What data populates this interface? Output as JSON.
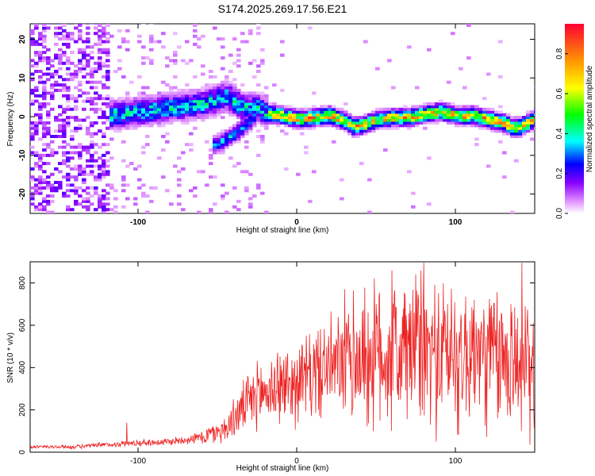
{
  "title": "S174.2025.269.17.56.E21",
  "chart_data": [
    {
      "type": "heatmap",
      "title": "S174.2025.269.17.56.E21",
      "xlabel": "Height of straight line (km)",
      "ylabel": "Frequency (Hz)",
      "xlim": [
        -168,
        150
      ],
      "ylim": [
        -25,
        24
      ],
      "xticks": [
        -100,
        0,
        100
      ],
      "yticks": [
        -20,
        -10,
        0,
        10,
        20
      ],
      "colorbar": {
        "label": "Normalized spectral amplitude",
        "range": [
          0,
          0.95
        ],
        "ticks": [
          0.0,
          0.2,
          0.4,
          0.6,
          0.8
        ],
        "tick_labels": [
          "0.0",
          "0.2",
          "0.4",
          "0.6",
          "0.8"
        ],
        "colormap": [
          "#ffffff",
          "#cc33ff",
          "#0000ff",
          "#00ffff",
          "#00ff00",
          "#ffff00",
          "#ff9900",
          "#ff0033"
        ]
      },
      "ridge": {
        "x": [
          -170,
          -140,
          -120,
          -100,
          -80,
          -60,
          -45,
          -35,
          -25,
          -20,
          -10,
          0,
          10,
          20,
          30,
          35,
          40,
          50,
          60,
          70,
          80,
          90,
          100,
          110,
          120,
          130,
          135,
          140,
          150
        ],
        "y": [
          -4,
          -2,
          0,
          1,
          2,
          3,
          5,
          2,
          2,
          0.5,
          0,
          -1,
          -0.5,
          0,
          -1.5,
          -3,
          -2.5,
          -1,
          -0.5,
          -0.5,
          0.5,
          1,
          0,
          0,
          -1,
          -2,
          -3,
          -3,
          -0.5
        ]
      },
      "branch": {
        "x": [
          -52,
          -45,
          -38,
          -32,
          -27
        ],
        "y": [
          -7.5,
          -6,
          -4,
          -2,
          0
        ]
      }
    },
    {
      "type": "line",
      "title": "",
      "xlabel": "Height of straight line (km)",
      "ylabel": "SNR (10 * v/v)",
      "xlim": [
        -168,
        150
      ],
      "ylim": [
        0,
        900
      ],
      "xticks": [
        -100,
        0,
        100
      ],
      "yticks": [
        0,
        200,
        400,
        600,
        800
      ],
      "color": "#ee2222",
      "trend": {
        "x": [
          -168,
          -140,
          -110,
          -80,
          -60,
          -45,
          -35,
          -25,
          -15,
          0,
          10,
          20,
          35,
          45,
          60,
          80,
          100,
          120,
          140,
          150
        ],
        "y": [
          25,
          25,
          40,
          50,
          70,
          110,
          200,
          270,
          300,
          330,
          370,
          400,
          430,
          450,
          470,
          470,
          460,
          450,
          420,
          340
        ]
      },
      "peaks": [
        {
          "x": -107,
          "y": 140
        },
        {
          "x": -40,
          "y": 250
        },
        {
          "x": -24,
          "y": 340
        },
        {
          "x": -12,
          "y": 470
        },
        {
          "x": 38,
          "y": 535
        },
        {
          "x": 45,
          "y": 660
        },
        {
          "x": 60,
          "y": 860
        },
        {
          "x": 75,
          "y": 840
        },
        {
          "x": 80,
          "y": 895
        },
        {
          "x": 95,
          "y": 700
        },
        {
          "x": 112,
          "y": 720
        },
        {
          "x": 135,
          "y": 700
        },
        {
          "x": 142,
          "y": 895
        },
        {
          "x": 149,
          "y": 610
        }
      ]
    }
  ]
}
